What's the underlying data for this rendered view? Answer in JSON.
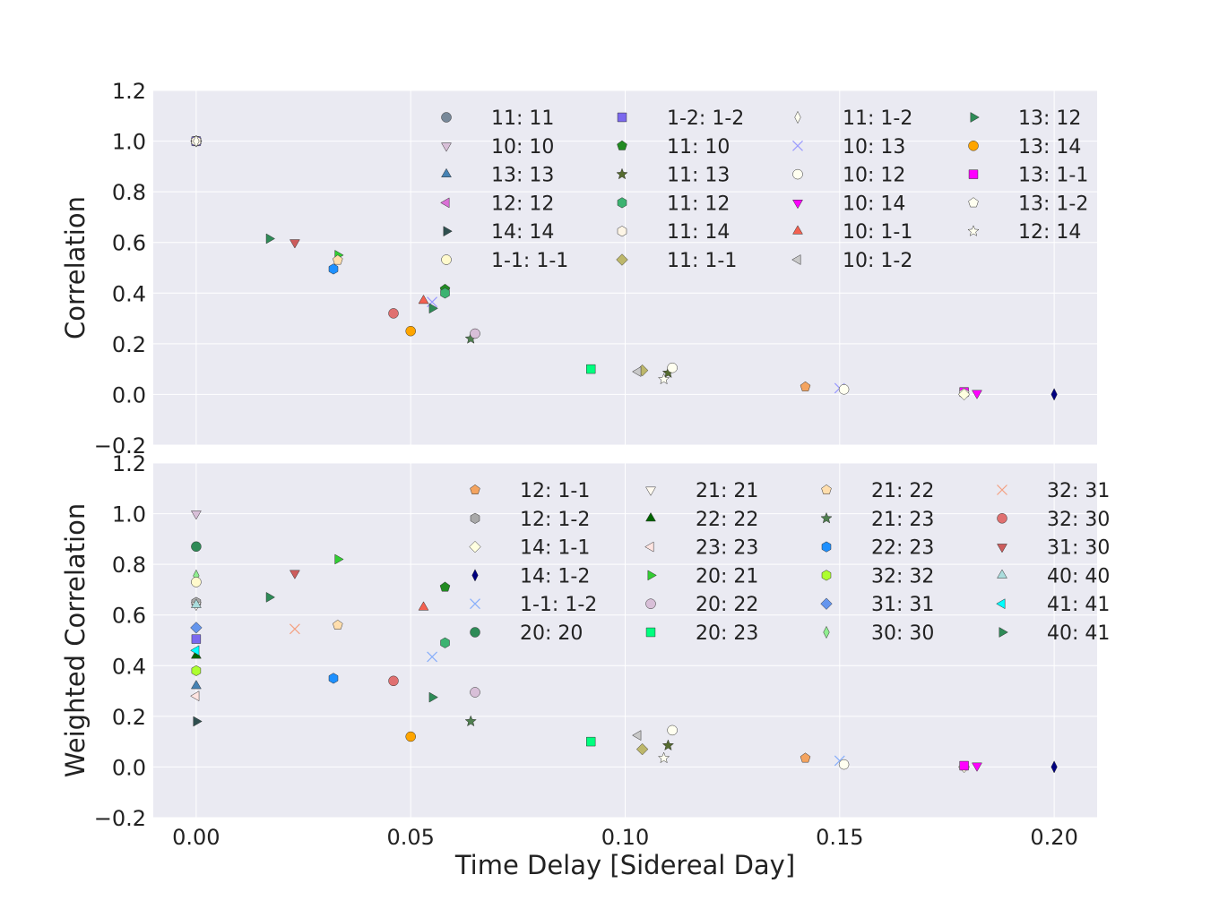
{
  "chart_data": [
    {
      "type": "scatter",
      "title": "",
      "xlabel": "",
      "ylabel": "Correlation",
      "xlim": [
        -0.01,
        0.21
      ],
      "ylim": [
        -0.2,
        1.2
      ],
      "yticks": [
        "−0.2",
        "0.0",
        "0.2",
        "0.4",
        "0.6",
        "0.8",
        "1.0",
        "1.2"
      ],
      "grid": true,
      "legend_position": "upper-right",
      "series": [
        {
          "name": "11: 11",
          "marker": "circle",
          "color": "#778899",
          "points": [
            [
              0.0,
              1.0
            ]
          ]
        },
        {
          "name": "10: 10",
          "marker": "tri-down",
          "color": "#d8bfd8",
          "points": [
            [
              0.0,
              1.0
            ]
          ]
        },
        {
          "name": "13: 13",
          "marker": "tri-up",
          "color": "#4682b4",
          "points": [
            [
              0.0,
              1.0
            ]
          ]
        },
        {
          "name": "12: 12",
          "marker": "tri-left",
          "color": "#da70d6",
          "points": [
            [
              0.0,
              1.0
            ]
          ]
        },
        {
          "name": "14: 14",
          "marker": "tri-right",
          "color": "#2f4f4f",
          "points": [
            [
              0.0,
              1.0
            ]
          ]
        },
        {
          "name": "1-1: 1-1",
          "marker": "circle",
          "color": "#fffacd",
          "points": [
            [
              0.0,
              1.0
            ]
          ]
        },
        {
          "name": "1-2: 1-2",
          "marker": "square",
          "color": "#7b68ee",
          "points": [
            [
              0.0,
              1.0
            ]
          ]
        },
        {
          "name": "11: 10",
          "marker": "pentagon",
          "color": "#228b22",
          "points": [
            [
              0.058,
              0.415
            ]
          ]
        },
        {
          "name": "11: 13",
          "marker": "star",
          "color": "#556b2f",
          "points": [
            [
              0.11,
              0.085
            ]
          ]
        },
        {
          "name": "11: 12",
          "marker": "hexagon",
          "color": "#3cb371",
          "points": [
            [
              0.058,
              0.4
            ]
          ]
        },
        {
          "name": "11: 14",
          "marker": "hexagon",
          "color": "#fdf5e6",
          "points": [
            [
              0.0,
              1.0
            ]
          ]
        },
        {
          "name": "11: 1-1",
          "marker": "diamond",
          "color": "#bdb76b",
          "points": [
            [
              0.104,
              0.095
            ]
          ]
        },
        {
          "name": "11: 1-2",
          "marker": "thin-diamond",
          "color": "#fffff0",
          "points": [
            [
              0.0,
              1.0
            ]
          ]
        },
        {
          "name": "10: 13",
          "marker": "x",
          "color": "#9999ff",
          "points": [
            [
              0.055,
              0.365
            ],
            [
              0.15,
              0.025
            ]
          ]
        },
        {
          "name": "10: 12",
          "marker": "circle",
          "color": "#fffff0",
          "points": [
            [
              0.111,
              0.105
            ],
            [
              0.151,
              0.02
            ]
          ]
        },
        {
          "name": "10: 14",
          "marker": "tri-down",
          "color": "#ff00ff",
          "points": [
            [
              0.182,
              0.005
            ]
          ]
        },
        {
          "name": "10: 1-1",
          "marker": "tri-up",
          "color": "#f46050",
          "points": [
            [
              0.053,
              0.37
            ]
          ]
        },
        {
          "name": "10: 1-2",
          "marker": "tri-left",
          "color": "#c8c8c8",
          "points": [
            [
              0.103,
              0.09
            ]
          ]
        },
        {
          "name": "13: 12",
          "marker": "tri-right",
          "color": "#2e8b57",
          "points": [
            [
              0.017,
              0.615
            ],
            [
              0.055,
              0.34
            ]
          ]
        },
        {
          "name": "13: 14",
          "marker": "circle",
          "color": "#ffa500",
          "points": [
            [
              0.05,
              0.25
            ]
          ]
        },
        {
          "name": "13: 1-1",
          "marker": "square",
          "color": "#ff00ff",
          "points": [
            [
              0.179,
              0.01
            ]
          ]
        },
        {
          "name": "13: 1-2",
          "marker": "pentagon",
          "color": "#fffff0",
          "points": [
            [
              0.179,
              0.005
            ]
          ]
        },
        {
          "name": "12: 14",
          "marker": "star",
          "color": "#fffff0",
          "points": [
            [
              0.109,
              0.06
            ]
          ]
        },
        {
          "name": "",
          "marker": "tri-down",
          "color": "#cd5c5c",
          "points": [
            [
              0.023,
              0.6
            ]
          ]
        },
        {
          "name": "",
          "marker": "hexagon",
          "color": "#1e90ff",
          "points": [
            [
              0.032,
              0.495
            ]
          ]
        },
        {
          "name": "",
          "marker": "tri-right",
          "color": "#32cd32",
          "points": [
            [
              0.033,
              0.55
            ]
          ]
        },
        {
          "name": "",
          "marker": "pentagon",
          "color": "#ffdead",
          "points": [
            [
              0.033,
              0.53
            ]
          ]
        },
        {
          "name": "",
          "marker": "circle",
          "color": "#e07070",
          "points": [
            [
              0.046,
              0.32
            ]
          ]
        },
        {
          "name": "",
          "marker": "star",
          "color": "#4f7f4f",
          "points": [
            [
              0.064,
              0.22
            ]
          ]
        },
        {
          "name": "",
          "marker": "circle",
          "color": "#d8bfd8",
          "points": [
            [
              0.065,
              0.24
            ]
          ]
        },
        {
          "name": "",
          "marker": "square",
          "color": "#00ff7f",
          "points": [
            [
              0.092,
              0.1
            ]
          ]
        },
        {
          "name": "",
          "marker": "pentagon",
          "color": "#f4a460",
          "points": [
            [
              0.142,
              0.03
            ]
          ]
        },
        {
          "name": "",
          "marker": "diamond",
          "color": "#ffffe0",
          "points": [
            [
              0.179,
              0.0
            ]
          ]
        },
        {
          "name": "",
          "marker": "thin-diamond",
          "color": "#000080",
          "points": [
            [
              0.2,
              0.0
            ]
          ]
        }
      ]
    },
    {
      "type": "scatter",
      "title": "",
      "xlabel": "Time Delay [Sidereal Day]",
      "ylabel": "Weighted Correlation",
      "xlim": [
        -0.01,
        0.21
      ],
      "ylim": [
        -0.2,
        1.2
      ],
      "xticks": [
        "0.00",
        "0.05",
        "0.10",
        "0.15",
        "0.20"
      ],
      "yticks": [
        "−0.2",
        "0.0",
        "0.2",
        "0.4",
        "0.6",
        "0.8",
        "1.0",
        "1.2"
      ],
      "grid": true,
      "legend_position": "upper-right",
      "series": [
        {
          "name": "12: 1-1",
          "marker": "pentagon",
          "color": "#f4a460",
          "points": [
            [
              0.142,
              0.035
            ]
          ]
        },
        {
          "name": "12: 1-2",
          "marker": "hexagon",
          "color": "#a9a9a9",
          "points": [
            [
              0.0,
              0.65
            ]
          ]
        },
        {
          "name": "14: 1-1",
          "marker": "diamond",
          "color": "#ffffe0",
          "points": [
            [
              0.179,
              0.0
            ]
          ]
        },
        {
          "name": "14: 1-2",
          "marker": "thin-diamond",
          "color": "#000080",
          "points": [
            [
              0.2,
              0.0
            ]
          ]
        },
        {
          "name": "1-1: 1-2",
          "marker": "x",
          "color": "#87aefa",
          "points": [
            [
              0.055,
              0.435
            ],
            [
              0.15,
              0.025
            ]
          ]
        },
        {
          "name": "20: 20",
          "marker": "circle",
          "color": "#2e8b57",
          "points": [
            [
              0.0,
              0.87
            ]
          ]
        },
        {
          "name": "21: 21",
          "marker": "tri-down",
          "color": "#fffaf0",
          "points": [
            [
              0.0,
              0.64
            ]
          ]
        },
        {
          "name": "22: 22",
          "marker": "tri-up",
          "color": "#006400",
          "points": [
            [
              0.0,
              0.44
            ]
          ]
        },
        {
          "name": "23: 23",
          "marker": "tri-left",
          "color": "#ffe4e1",
          "points": [
            [
              0.0,
              0.28
            ]
          ]
        },
        {
          "name": "20: 21",
          "marker": "tri-right",
          "color": "#32cd32",
          "points": [
            [
              0.033,
              0.82
            ]
          ]
        },
        {
          "name": "20: 22",
          "marker": "circle",
          "color": "#d8bfd8",
          "points": [
            [
              0.065,
              0.295
            ]
          ]
        },
        {
          "name": "20: 23",
          "marker": "square",
          "color": "#00ff7f",
          "points": [
            [
              0.092,
              0.1
            ]
          ]
        },
        {
          "name": "21: 22",
          "marker": "pentagon",
          "color": "#ffdead",
          "points": [
            [
              0.033,
              0.56
            ]
          ]
        },
        {
          "name": "21: 23",
          "marker": "star",
          "color": "#4f7f4f",
          "points": [
            [
              0.064,
              0.18
            ]
          ]
        },
        {
          "name": "22: 23",
          "marker": "hexagon",
          "color": "#1e90ff",
          "points": [
            [
              0.032,
              0.35
            ]
          ]
        },
        {
          "name": "32: 32",
          "marker": "hexagon",
          "color": "#adff2f",
          "points": [
            [
              0.0,
              0.38
            ]
          ]
        },
        {
          "name": "31: 31",
          "marker": "diamond",
          "color": "#6495ed",
          "points": [
            [
              0.0,
              0.55
            ]
          ]
        },
        {
          "name": "30: 30",
          "marker": "thin-diamond",
          "color": "#90ee90",
          "points": [
            [
              0.0,
              0.755
            ]
          ]
        },
        {
          "name": "32: 31",
          "marker": "x",
          "color": "#f4a080",
          "points": [
            [
              0.023,
              0.545
            ]
          ]
        },
        {
          "name": "32: 30",
          "marker": "circle",
          "color": "#e07070",
          "points": [
            [
              0.046,
              0.34
            ]
          ]
        },
        {
          "name": "31: 30",
          "marker": "tri-down",
          "color": "#cd5c5c",
          "points": [
            [
              0.023,
              0.765
            ]
          ]
        },
        {
          "name": "40: 40",
          "marker": "tri-up",
          "color": "#aadddd",
          "points": [
            [
              0.0,
              0.64
            ]
          ]
        },
        {
          "name": "41: 41",
          "marker": "tri-left",
          "color": "#00ffff",
          "points": [
            [
              0.0,
              0.46
            ]
          ]
        },
        {
          "name": "40: 41",
          "marker": "tri-right",
          "color": "#2e8b57",
          "points": [
            [
              0.017,
              0.67
            ],
            [
              0.055,
              0.275
            ]
          ]
        },
        {
          "name": "",
          "marker": "tri-down",
          "color": "#d8bfd8",
          "points": [
            [
              0.0,
              1.0
            ]
          ]
        },
        {
          "name": "",
          "marker": "circle",
          "color": "#fffacd",
          "points": [
            [
              0.0,
              0.73
            ]
          ]
        },
        {
          "name": "",
          "marker": "square",
          "color": "#7b68ee",
          "points": [
            [
              0.0,
              0.505
            ]
          ]
        },
        {
          "name": "",
          "marker": "tri-up",
          "color": "#4682b4",
          "points": [
            [
              0.0,
              0.32
            ]
          ]
        },
        {
          "name": "",
          "marker": "tri-right",
          "color": "#2f4f4f",
          "points": [
            [
              0.0,
              0.18
            ]
          ]
        },
        {
          "name": "",
          "marker": "circle",
          "color": "#ffa500",
          "points": [
            [
              0.05,
              0.12
            ]
          ]
        },
        {
          "name": "",
          "marker": "tri-up",
          "color": "#f46050",
          "points": [
            [
              0.053,
              0.63
            ]
          ]
        },
        {
          "name": "",
          "marker": "pentagon",
          "color": "#228b22",
          "points": [
            [
              0.058,
              0.71
            ]
          ]
        },
        {
          "name": "",
          "marker": "hexagon",
          "color": "#3cb371",
          "points": [
            [
              0.058,
              0.49
            ]
          ]
        },
        {
          "name": "",
          "marker": "tri-left",
          "color": "#c8c8c8",
          "points": [
            [
              0.103,
              0.125
            ]
          ]
        },
        {
          "name": "",
          "marker": "diamond",
          "color": "#bdb76b",
          "points": [
            [
              0.104,
              0.07
            ]
          ]
        },
        {
          "name": "",
          "marker": "star",
          "color": "#fffff0",
          "points": [
            [
              0.109,
              0.035
            ]
          ]
        },
        {
          "name": "",
          "marker": "star",
          "color": "#556b2f",
          "points": [
            [
              0.11,
              0.085
            ]
          ]
        },
        {
          "name": "",
          "marker": "circle",
          "color": "#fffff0",
          "points": [
            [
              0.111,
              0.145
            ],
            [
              0.151,
              0.01
            ]
          ]
        },
        {
          "name": "",
          "marker": "square",
          "color": "#ff00ff",
          "points": [
            [
              0.179,
              0.005
            ]
          ]
        },
        {
          "name": "",
          "marker": "tri-down",
          "color": "#ff00ff",
          "points": [
            [
              0.182,
              0.005
            ]
          ]
        }
      ]
    }
  ]
}
